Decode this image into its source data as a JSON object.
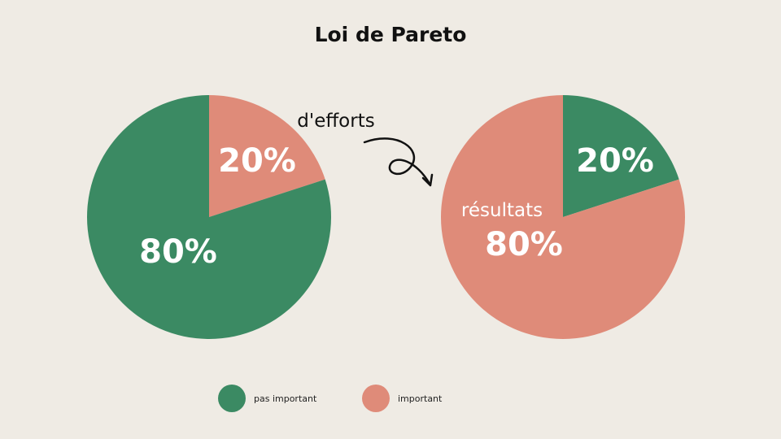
{
  "colors": {
    "background": "#efebe4",
    "green": "#3b8a63",
    "salmon": "#df8b79",
    "ink": "#111111"
  },
  "chart_data": [
    {
      "type": "pie",
      "title": "Loi de Pareto",
      "label": "d'efforts",
      "slices": [
        {
          "name": "important",
          "value": 20,
          "label": "20%",
          "color": "#df8b79"
        },
        {
          "name": "pas important",
          "value": 80,
          "label": "80%",
          "color": "#3b8a63"
        }
      ]
    },
    {
      "type": "pie",
      "label": "résultats",
      "slices": [
        {
          "name": "pas important",
          "value": 20,
          "label": "20%",
          "color": "#3b8a63"
        },
        {
          "name": "important",
          "value": 80,
          "label": "80%",
          "color": "#df8b79"
        }
      ]
    }
  ],
  "legend": [
    {
      "label": "pas important",
      "color": "#3b8a63"
    },
    {
      "label": "important",
      "color": "#df8b79"
    }
  ]
}
